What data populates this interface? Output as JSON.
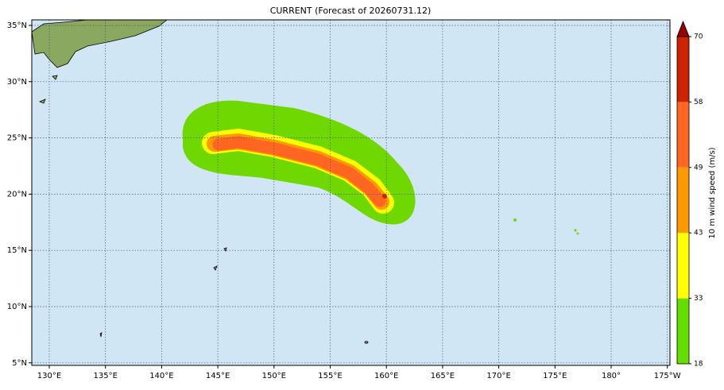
{
  "title": "CURRENT (Forecast of 20260731.12)",
  "map": {
    "lon_ticks": [
      "130°E",
      "135°E",
      "140°E",
      "145°E",
      "150°E",
      "155°E",
      "160°E",
      "165°E",
      "170°E",
      "175°E",
      "180°",
      "175°W"
    ],
    "lat_ticks": [
      "35°N",
      "30°N",
      "25°N",
      "20°N",
      "15°N",
      "10°N",
      "5°N"
    ]
  },
  "colorbar": {
    "label": "10 m wind speed (m/s)",
    "levels": [
      18,
      33,
      43,
      49,
      58,
      70
    ],
    "colors": [
      "#66dd00",
      "#ffff00",
      "#ff9900",
      "#ff6622",
      "#cc2200"
    ],
    "extend_color": "#990000"
  }
}
